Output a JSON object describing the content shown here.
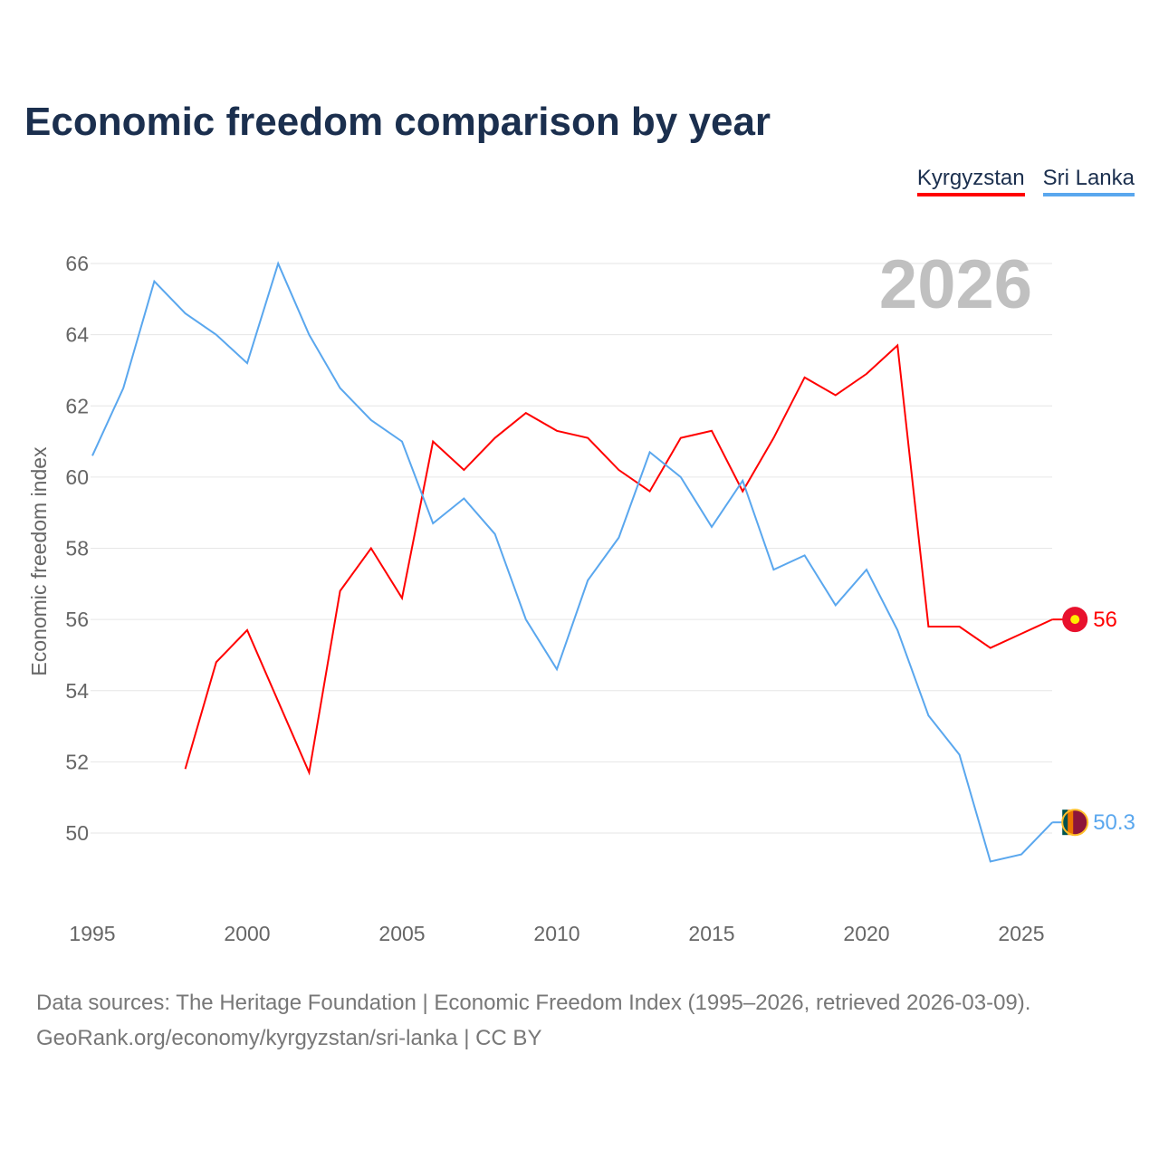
{
  "title": "Economic freedom comparison by year",
  "legend": [
    {
      "label": "Kyrgyzstan",
      "color": "#ff0000"
    },
    {
      "label": "Sri Lanka",
      "color": "#5aa7ee"
    }
  ],
  "year_label": "2026",
  "source_line1": "Data sources: The Heritage Foundation | Economic Freedom Index (1995–2026, retrieved 2026-03-09).",
  "source_line2": "GeoRank.org/economy/kyrgyzstan/sri-lanka | CC BY",
  "chart_data": {
    "type": "line",
    "title": "Economic freedom comparison by year",
    "xlabel": "",
    "ylabel": "Economic freedom index",
    "xlim": [
      1995,
      2026
    ],
    "ylim": [
      48,
      66.5
    ],
    "x_ticks": [
      "1995",
      "2000",
      "2005",
      "2010",
      "2015",
      "2020",
      "2025"
    ],
    "y_ticks": [
      "50",
      "52",
      "54",
      "56",
      "58",
      "60",
      "62",
      "64",
      "66"
    ],
    "grid": true,
    "legend_position": "top-right",
    "series": [
      {
        "name": "Kyrgyzstan",
        "color": "#ff0000",
        "end_label": "56",
        "x": [
          1998,
          1999,
          2000,
          2001,
          2002,
          2003,
          2004,
          2005,
          2006,
          2007,
          2008,
          2009,
          2010,
          2011,
          2012,
          2013,
          2014,
          2015,
          2016,
          2017,
          2018,
          2019,
          2020,
          2021,
          2022,
          2023,
          2024,
          2025,
          2026
        ],
        "values": [
          51.8,
          54.8,
          55.7,
          53.7,
          51.7,
          56.8,
          58.0,
          56.6,
          61.0,
          60.2,
          61.1,
          61.8,
          61.3,
          61.1,
          60.2,
          59.6,
          61.1,
          61.3,
          59.6,
          61.1,
          62.8,
          62.3,
          62.9,
          63.7,
          55.8,
          55.8,
          55.2,
          55.6,
          56.0
        ]
      },
      {
        "name": "Sri Lanka",
        "color": "#5aa7ee",
        "end_label": "50.3",
        "x": [
          1995,
          1996,
          1997,
          1998,
          1999,
          2000,
          2001,
          2002,
          2003,
          2004,
          2005,
          2006,
          2007,
          2008,
          2009,
          2010,
          2011,
          2012,
          2013,
          2014,
          2015,
          2016,
          2017,
          2018,
          2019,
          2020,
          2021,
          2022,
          2023,
          2024,
          2025,
          2026
        ],
        "values": [
          60.6,
          62.5,
          65.5,
          64.6,
          64.0,
          63.2,
          66.0,
          64.0,
          62.5,
          61.6,
          61.0,
          58.7,
          59.4,
          58.4,
          56.0,
          54.6,
          57.1,
          58.3,
          60.7,
          60.0,
          58.6,
          59.9,
          57.4,
          57.8,
          56.4,
          57.4,
          55.7,
          53.3,
          52.2,
          49.2,
          49.4,
          50.3
        ]
      }
    ]
  }
}
